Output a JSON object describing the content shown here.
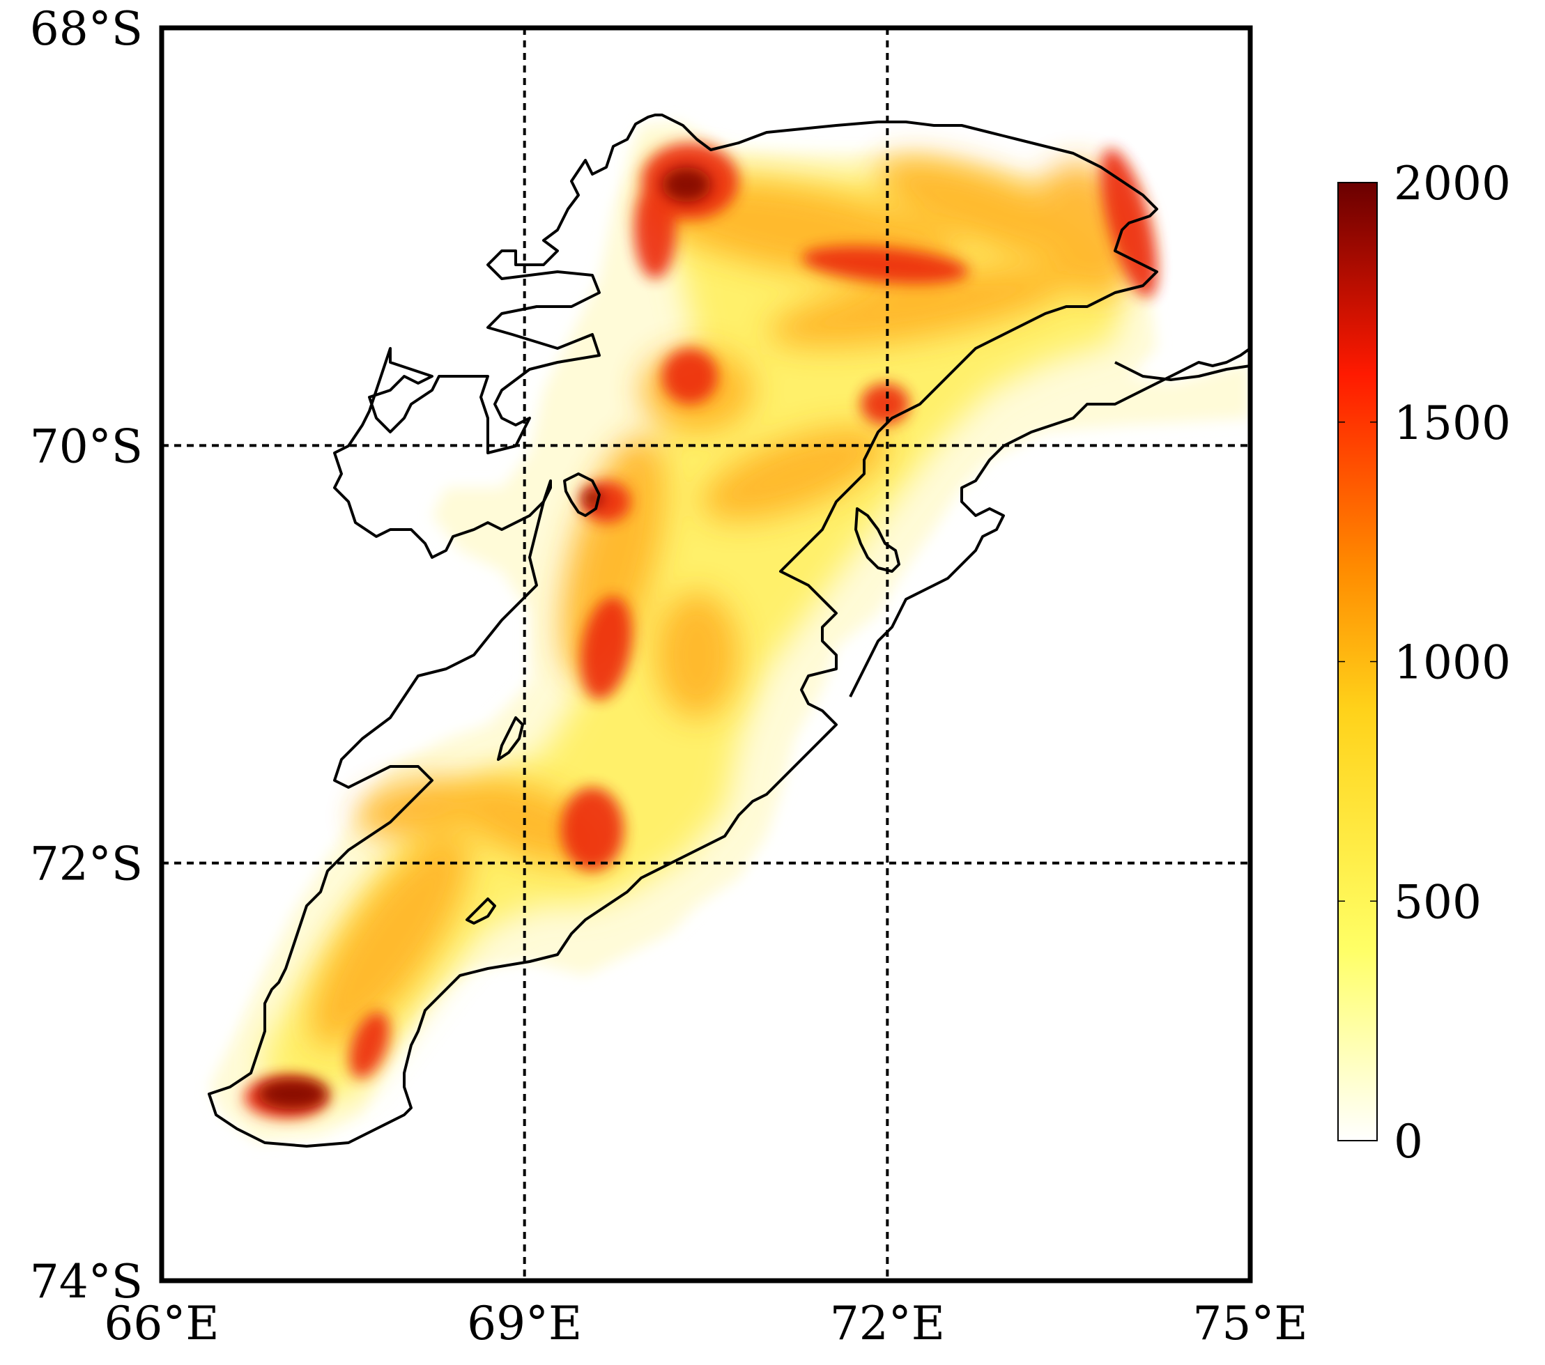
{
  "map": {
    "axes": {
      "x": {
        "min": 66,
        "max": 75,
        "ticks": [
          {
            "value": 66,
            "label": "66°E"
          },
          {
            "value": 69,
            "label": "69°E"
          },
          {
            "value": 72,
            "label": "72°E"
          },
          {
            "value": 75,
            "label": "75°E"
          }
        ]
      },
      "y": {
        "min": -74,
        "max": -68,
        "ticks": [
          {
            "value": -68,
            "label": "68°S"
          },
          {
            "value": -70,
            "label": "70°S"
          },
          {
            "value": -72,
            "label": "72°S"
          },
          {
            "value": -74,
            "label": "74°S"
          }
        ]
      },
      "grid": true,
      "grid_style": "dashed"
    },
    "colorbar": {
      "min": 0,
      "max": 2000,
      "colormap": "white-yellow-orange-red-darkred",
      "stops": [
        "#ffffff",
        "#ffff66",
        "#ffd21a",
        "#ff8a00",
        "#ff1a00",
        "#6a0000"
      ],
      "ticks": [
        {
          "value": 0,
          "label": "0"
        },
        {
          "value": 500,
          "label": "500"
        },
        {
          "value": 1000,
          "label": "1000"
        },
        {
          "value": 1500,
          "label": "1500"
        },
        {
          "value": 2000,
          "label": "2000"
        }
      ]
    },
    "field_colors": {
      "low": "#fffbd0",
      "light_yellow": "#fff27a",
      "yellow": "#ffe640",
      "orange": "#ffb028",
      "dark_orange": "#ff7a12",
      "red": "#e8200a",
      "dark_red": "#8a0a00"
    }
  }
}
